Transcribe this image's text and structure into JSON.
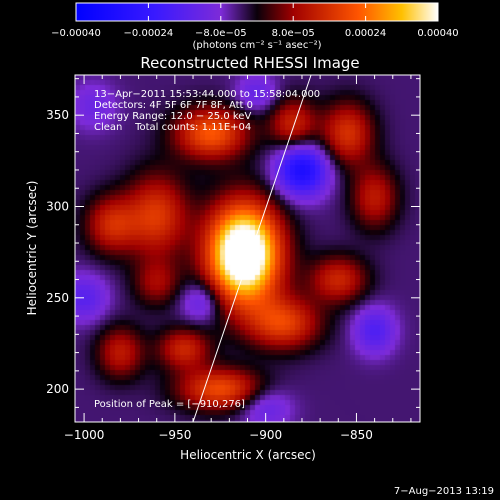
{
  "chart_data": {
    "type": "heatmap",
    "title": "Reconstructed RHESSI Image",
    "xlabel": "Heliocentric X (arcsec)",
    "ylabel": "Heliocentric Y (arcsec)",
    "xlim": [
      -1005,
      -815
    ],
    "ylim": [
      182,
      372
    ],
    "x_ticks": [
      -1000,
      -950,
      -900,
      -850
    ],
    "y_ticks": [
      200,
      250,
      300,
      350
    ],
    "x_tick_labels": [
      "−1000",
      "−950",
      "−900",
      "−850"
    ],
    "y_tick_labels": [
      "200",
      "250",
      "300",
      "350"
    ],
    "colorbar": {
      "range": [
        -0.0004,
        0.0004
      ],
      "ticks": [
        -0.0004,
        -0.00024,
        -8e-05,
        8e-05,
        0.00024,
        0.0004
      ],
      "tick_labels": [
        "−0.00040",
        "−0.00024",
        "−8.0e−05",
        "8.0e−05",
        "0.00024",
        "0.00040"
      ],
      "unit_label": "(photons cm⁻² s⁻¹ asec⁻²)"
    },
    "annotations": [
      "13−Apr−2011 15:53:44.000 to 15:58:04.000",
      "Detectors: 4F 5F 6F 7F 8F, Att 0",
      "Energy Range: 12.0 − 25.0 keV",
      "Clean    Total counts: 1.11E+04"
    ],
    "peak_label": "Position of Peak = [−910,276]",
    "peak_position": [
      -910,
      276
    ],
    "limb_line": {
      "points": [
        [
          -940,
          182
        ],
        [
          -875,
          372
        ]
      ]
    },
    "grid": false,
    "image_sources": [
      {
        "x": -912,
        "y": 274,
        "sx": 14,
        "sy": 19,
        "amp": 0.00058
      },
      {
        "x": -890,
        "y": 236,
        "sx": 14,
        "sy": 10,
        "amp": 0.00022
      },
      {
        "x": -960,
        "y": 295,
        "sx": 12,
        "sy": 16,
        "amp": 0.00021
      },
      {
        "x": -985,
        "y": 290,
        "sx": 10,
        "sy": 11,
        "amp": 0.00018
      },
      {
        "x": -930,
        "y": 340,
        "sx": 14,
        "sy": 10,
        "amp": 0.00026
      },
      {
        "x": -885,
        "y": 345,
        "sx": 9,
        "sy": 10,
        "amp": 0.00018
      },
      {
        "x": -855,
        "y": 340,
        "sx": 10,
        "sy": 12,
        "amp": 0.0002
      },
      {
        "x": -840,
        "y": 305,
        "sx": 9,
        "sy": 12,
        "amp": 0.00016
      },
      {
        "x": -860,
        "y": 260,
        "sx": 11,
        "sy": 9,
        "amp": 0.00018
      },
      {
        "x": -945,
        "y": 222,
        "sx": 10,
        "sy": 8,
        "amp": 0.00018
      },
      {
        "x": -925,
        "y": 200,
        "sx": 16,
        "sy": 8,
        "amp": 0.00024
      },
      {
        "x": -980,
        "y": 220,
        "sx": 9,
        "sy": 10,
        "amp": 0.00016
      },
      {
        "x": -960,
        "y": 258,
        "sx": 9,
        "sy": 9,
        "amp": 0.00012
      },
      {
        "x": -880,
        "y": 320,
        "sx": 10,
        "sy": 10,
        "amp": -0.00028
      },
      {
        "x": -840,
        "y": 232,
        "sx": 8,
        "sy": 9,
        "amp": -0.00014
      },
      {
        "x": -1000,
        "y": 250,
        "sx": 9,
        "sy": 9,
        "amp": -0.00012
      },
      {
        "x": -935,
        "y": 248,
        "sx": 8,
        "sy": 8,
        "amp": -0.00012
      },
      {
        "x": -900,
        "y": 190,
        "sx": 10,
        "sy": 8,
        "amp": -0.0001
      },
      {
        "x": -995,
        "y": 355,
        "sx": 9,
        "sy": 9,
        "amp": -8e-05
      },
      {
        "x": -905,
        "y": 362,
        "sx": 8,
        "sy": 7,
        "amp": -0.0001
      }
    ]
  },
  "timestamp": "7−Aug−2013 13:19"
}
